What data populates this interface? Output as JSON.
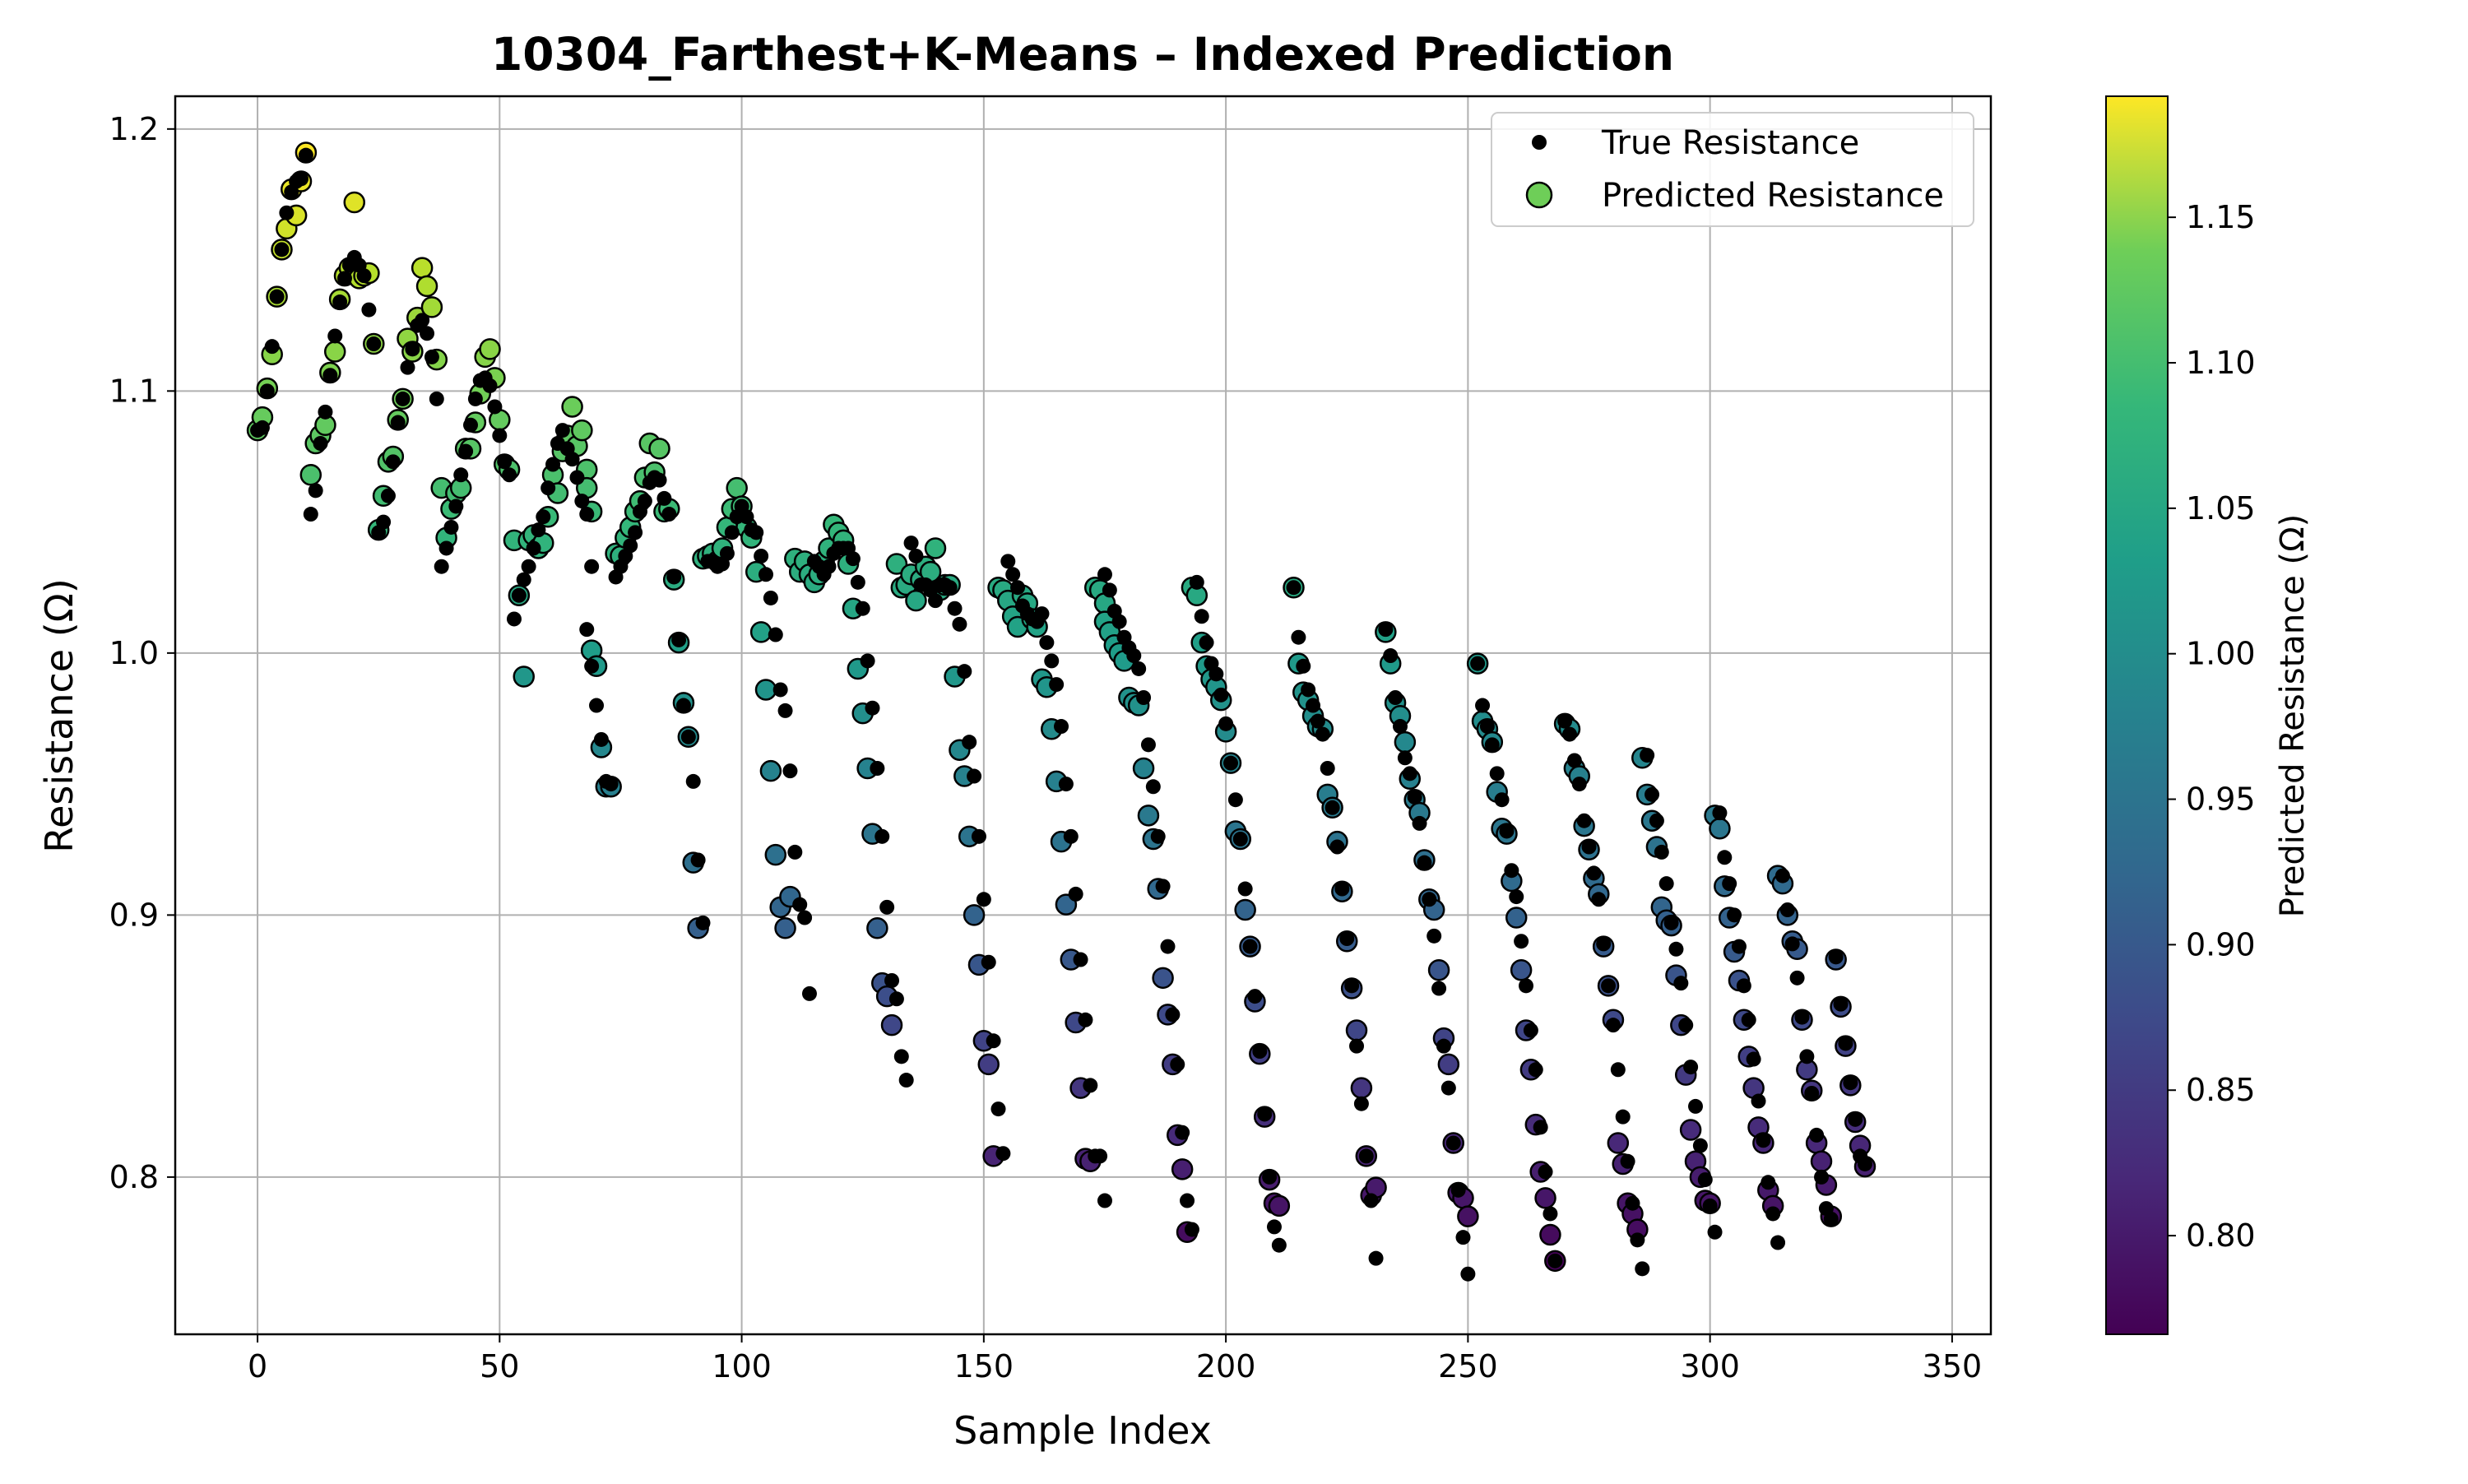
{
  "chart_data": {
    "type": "scatter",
    "title": "10304_Farthest+K-Means – Indexed Prediction",
    "xlabel": "Sample Index",
    "ylabel": "Resistance (Ω)",
    "xlim": [
      -17,
      358
    ],
    "ylim": [
      0.74,
      1.2125
    ],
    "xticks": [
      0,
      50,
      100,
      150,
      200,
      250,
      300,
      350
    ],
    "yticks": [
      0.8,
      0.9,
      1.0,
      1.1,
      1.2
    ],
    "ytick_labels": [
      "0.8",
      "0.9",
      "1.0",
      "1.1",
      "1.2"
    ],
    "grid": true,
    "legend_position": "top-right",
    "colorbar": {
      "label": "Predicted Resistance (Ω)",
      "range": [
        0.7661,
        1.1916
      ],
      "ticks": [
        0.8,
        0.85,
        0.9,
        0.95,
        1.0,
        1.05,
        1.1,
        1.15
      ],
      "tick_labels": [
        "0.80",
        "0.85",
        "0.90",
        "0.95",
        "1.00",
        "1.05",
        "1.10",
        "1.15"
      ],
      "colormap": "viridis"
    },
    "series": [
      {
        "name": "True Resistance",
        "color": "#000000",
        "segments": [
          {
            "start": 0,
            "values": [
              1.085,
              1.086,
              1.1,
              1.117,
              1.136,
              1.154,
              1.168,
              1.176,
              1.18,
              1.181,
              1.19
            ]
          },
          {
            "start": 11,
            "values": [
              1.053,
              1.062,
              1.08,
              1.092,
              1.106,
              1.121,
              1.134,
              1.143,
              1.148,
              1.151,
              1.148,
              1.144,
              1.131,
              1.118
            ]
          },
          {
            "start": 25,
            "values": [
              1.046,
              1.05,
              1.06,
              1.073,
              1.088,
              1.097,
              1.109,
              1.116,
              1.125,
              1.127,
              1.122,
              1.113,
              1.097
            ]
          },
          {
            "start": 38,
            "values": [
              1.033,
              1.04,
              1.048,
              1.056,
              1.068,
              1.077,
              1.087,
              1.097,
              1.104,
              1.105,
              1.102,
              1.094,
              1.083,
              1.073,
              1.068
            ]
          },
          {
            "start": 53,
            "values": [
              1.013,
              1.022,
              1.028,
              1.033,
              1.04,
              1.047,
              1.052,
              1.063,
              1.072,
              1.08,
              1.085,
              1.078,
              1.074,
              1.067,
              1.058,
              1.053,
              1.033
            ]
          },
          {
            "start": 68,
            "values": [
              1.009,
              0.995,
              0.98,
              0.967,
              0.951,
              0.95
            ]
          },
          {
            "start": 74,
            "values": [
              1.029,
              1.033,
              1.037,
              1.041,
              1.046,
              1.054,
              1.058,
              1.065,
              1.067,
              1.066,
              1.059,
              1.053,
              1.029,
              1.005
            ]
          },
          {
            "start": 88,
            "values": [
              0.98,
              0.968,
              0.951,
              0.921,
              0.897
            ]
          },
          {
            "start": 93,
            "values": [
              1.035,
              1.035,
              1.033,
              1.034,
              1.038,
              1.046,
              1.052,
              1.056,
              1.052,
              1.047,
              1.046,
              1.037,
              1.03,
              1.021,
              1.007
            ]
          },
          {
            "start": 108,
            "values": [
              0.986,
              0.978,
              0.955,
              0.924,
              0.904,
              0.899,
              0.87
            ]
          },
          {
            "start": 115,
            "values": [
              1.035,
              1.033,
              1.03,
              1.033,
              1.038,
              1.04,
              1.04,
              1.04,
              1.036,
              1.027,
              1.017,
              0.997,
              0.979,
              0.956,
              0.93,
              0.903,
              0.875,
              0.868,
              0.846,
              0.837
            ]
          },
          {
            "start": 135,
            "values": [
              1.042,
              1.037,
              1.026,
              1.026,
              1.024,
              1.02,
              1.026,
              1.026,
              1.025,
              1.017,
              1.011,
              0.993,
              0.966,
              0.953,
              0.93,
              0.906,
              0.882,
              0.852,
              0.826,
              0.809
            ]
          },
          {
            "start": 155,
            "values": [
              1.035,
              1.03,
              1.025,
              1.018,
              1.015,
              1.013,
              1.012,
              1.015,
              1.004,
              0.997,
              0.988,
              0.972,
              0.95,
              0.93,
              0.908,
              0.883,
              0.86,
              0.835,
              0.808,
              0.808,
              0.791
            ]
          },
          {
            "start": 175,
            "values": [
              1.03,
              1.024,
              1.016,
              1.012,
              1.006,
              1.002,
              0.999,
              0.994,
              0.983,
              0.965,
              0.949,
              0.93,
              0.911,
              0.888,
              0.862,
              0.843,
              0.817,
              0.791,
              0.78
            ]
          },
          {
            "start": 194,
            "values": [
              1.027,
              1.014,
              1.004,
              0.996,
              0.992,
              0.984,
              0.973,
              0.958,
              0.944,
              0.929,
              0.91,
              0.888,
              0.869,
              0.848,
              0.824,
              0.8,
              0.781,
              0.774
            ]
          },
          {
            "start": 214,
            "values": [
              1.025,
              1.006,
              0.995,
              0.986,
              0.98,
              0.974,
              0.969,
              0.956,
              0.941,
              0.926,
              0.91,
              0.891,
              0.873,
              0.85,
              0.828,
              0.808,
              0.791,
              0.769
            ]
          },
          {
            "start": 233,
            "values": [
              1.009,
              0.999,
              0.983,
              0.972,
              0.96,
              0.954,
              0.945,
              0.935,
              0.92,
              0.906,
              0.892,
              0.872,
              0.85,
              0.834,
              0.813,
              0.795,
              0.777,
              0.763
            ]
          },
          {
            "start": 252,
            "values": [
              0.996,
              0.98,
              0.972,
              0.965,
              0.954,
              0.944,
              0.932,
              0.917,
              0.907,
              0.89,
              0.873,
              0.856,
              0.841,
              0.819,
              0.802,
              0.786,
              0.768
            ]
          },
          {
            "start": 270,
            "values": [
              0.974,
              0.969,
              0.959,
              0.95,
              0.936,
              0.926,
              0.916,
              0.906,
              0.889,
              0.873,
              0.858,
              0.841,
              0.823,
              0.806,
              0.79,
              0.776,
              0.765
            ]
          },
          {
            "start": 287,
            "values": [
              0.961,
              0.946,
              0.936,
              0.924,
              0.912,
              0.897,
              0.887,
              0.874,
              0.858,
              0.842,
              0.827,
              0.812,
              0.799,
              0.789,
              0.779
            ]
          },
          {
            "start": 302,
            "values": [
              0.939,
              0.922,
              0.912,
              0.9,
              0.888,
              0.873,
              0.86,
              0.845,
              0.829,
              0.814,
              0.798,
              0.786,
              0.775
            ]
          },
          {
            "start": 315,
            "values": [
              0.915,
              0.902,
              0.889,
              0.876,
              0.861,
              0.846,
              0.832,
              0.816,
              0.8,
              0.788,
              0.784
            ]
          },
          {
            "start": 326,
            "values": [
              0.884,
              0.866,
              0.851,
              0.836,
              0.822,
              0.808,
              0.805
            ]
          }
        ]
      },
      {
        "name": "Predicted Resistance",
        "colormap": "viridis",
        "segments": [
          {
            "start": 0,
            "values": [
              1.085,
              1.09,
              1.101,
              1.114,
              1.136,
              1.154,
              1.162,
              1.177,
              1.167,
              1.18,
              1.191
            ]
          },
          {
            "start": 11,
            "values": [
              1.068,
              1.08,
              1.083,
              1.087,
              1.107,
              1.115,
              1.135,
              1.144,
              1.147,
              1.172,
              1.143,
              1.144,
              1.145,
              1.118
            ]
          },
          {
            "start": 25,
            "values": [
              1.047,
              1.06,
              1.073,
              1.075,
              1.089,
              1.097,
              1.12,
              1.115,
              1.128,
              1.147,
              1.14,
              1.132,
              1.112
            ]
          },
          {
            "start": 38,
            "values": [
              1.063,
              1.044,
              1.055,
              1.061,
              1.063,
              1.078,
              1.078,
              1.088,
              1.099,
              1.113,
              1.116,
              1.105,
              1.089,
              1.072,
              1.07
            ]
          },
          {
            "start": 53,
            "values": [
              1.043,
              1.022,
              0.991,
              1.043,
              1.045,
              1.04,
              1.042,
              1.052,
              1.068,
              1.061,
              1.077,
              1.083,
              1.094,
              1.079,
              1.085,
              1.07,
              1.054
            ]
          },
          {
            "start": 68,
            "values": [
              1.063,
              1.001,
              0.995,
              0.964,
              0.949,
              0.949
            ]
          },
          {
            "start": 74,
            "values": [
              1.038,
              1.037,
              1.044,
              1.048,
              1.054,
              1.058,
              1.067,
              1.08,
              1.069,
              1.078,
              1.054,
              1.055,
              1.028,
              1.004
            ]
          },
          {
            "start": 88,
            "values": [
              0.981,
              0.968,
              0.92,
              0.895,
              1.036
            ]
          },
          {
            "start": 93,
            "values": [
              1.037,
              1.038,
              1.035,
              1.04,
              1.048,
              1.055,
              1.063,
              1.056,
              1.048,
              1.044,
              1.031,
              1.008,
              0.986,
              0.955,
              0.923
            ]
          },
          {
            "start": 108,
            "values": [
              0.903,
              0.895,
              0.907,
              1.036,
              1.031,
              1.035,
              1.03
            ]
          },
          {
            "start": 115,
            "values": [
              1.027,
              1.03,
              1.035,
              1.04,
              1.049,
              1.046,
              1.043,
              1.034,
              1.017,
              0.994,
              0.977,
              0.956,
              0.931,
              0.895,
              0.874,
              0.869,
              0.858,
              1.034,
              1.025,
              1.026
            ]
          },
          {
            "start": 135,
            "values": [
              1.03,
              1.02,
              1.028,
              1.033,
              1.031,
              1.04,
              1.024,
              1.026,
              1.026,
              0.991,
              0.963,
              0.953,
              0.93,
              0.9,
              0.881,
              0.852,
              0.843,
              0.808,
              1.025,
              1.024
            ]
          },
          {
            "start": 155,
            "values": [
              1.02,
              1.014,
              1.01,
              1.022,
              1.019,
              1.013,
              1.01,
              0.99,
              0.987,
              0.971,
              0.951,
              0.928,
              0.904,
              0.883,
              0.859,
              0.834,
              0.807,
              0.806,
              1.025,
              1.024,
              1.019
            ]
          },
          {
            "start": 175,
            "values": [
              1.012,
              1.008,
              1.003,
              1.0,
              0.997,
              0.983,
              0.981,
              0.98,
              0.956,
              0.938,
              0.929,
              0.91,
              0.876,
              0.862,
              0.843,
              0.816,
              0.803,
              0.779,
              1.025
            ]
          },
          {
            "start": 194,
            "values": [
              1.022,
              1.004,
              0.995,
              0.99,
              0.987,
              0.982,
              0.97,
              0.958,
              0.932,
              0.929,
              0.902,
              0.888,
              0.867,
              0.847,
              0.823,
              0.799,
              0.79,
              0.789
            ]
          },
          {
            "start": 214,
            "values": [
              1.025,
              0.996,
              0.985,
              0.982,
              0.976,
              0.972,
              0.971,
              0.946,
              0.941,
              0.928,
              0.909,
              0.89,
              0.872,
              0.856,
              0.834,
              0.808,
              0.793,
              0.796
            ]
          },
          {
            "start": 233,
            "values": [
              1.008,
              0.996,
              0.981,
              0.976,
              0.966,
              0.952,
              0.944,
              0.939,
              0.921,
              0.906,
              0.902,
              0.879,
              0.853,
              0.843,
              0.813,
              0.794,
              0.792,
              0.785
            ]
          },
          {
            "start": 252,
            "values": [
              0.996,
              0.974,
              0.971,
              0.966,
              0.947,
              0.933,
              0.931,
              0.913,
              0.899,
              0.879,
              0.856,
              0.841,
              0.82,
              0.802,
              0.792,
              0.778,
              0.768
            ]
          },
          {
            "start": 270,
            "values": [
              0.973,
              0.971,
              0.956,
              0.953,
              0.934,
              0.925,
              0.914,
              0.908,
              0.888,
              0.873,
              0.86,
              0.813,
              0.805,
              0.79,
              0.786,
              0.78,
              0.96
            ]
          },
          {
            "start": 287,
            "values": [
              0.946,
              0.936,
              0.926,
              0.903,
              0.898,
              0.896,
              0.877,
              0.858,
              0.839,
              0.818,
              0.806,
              0.8,
              0.791,
              0.79,
              0.938
            ]
          },
          {
            "start": 302,
            "values": [
              0.933,
              0.911,
              0.899,
              0.886,
              0.875,
              0.86,
              0.846,
              0.834,
              0.819,
              0.813,
              0.795,
              0.789,
              0.915
            ]
          },
          {
            "start": 315,
            "values": [
              0.912,
              0.9,
              0.89,
              0.887,
              0.86,
              0.841,
              0.833,
              0.813,
              0.806,
              0.797,
              0.785
            ]
          },
          {
            "start": 326,
            "values": [
              0.883,
              0.865,
              0.85,
              0.835,
              0.821,
              0.812,
              0.804
            ]
          }
        ]
      }
    ]
  }
}
